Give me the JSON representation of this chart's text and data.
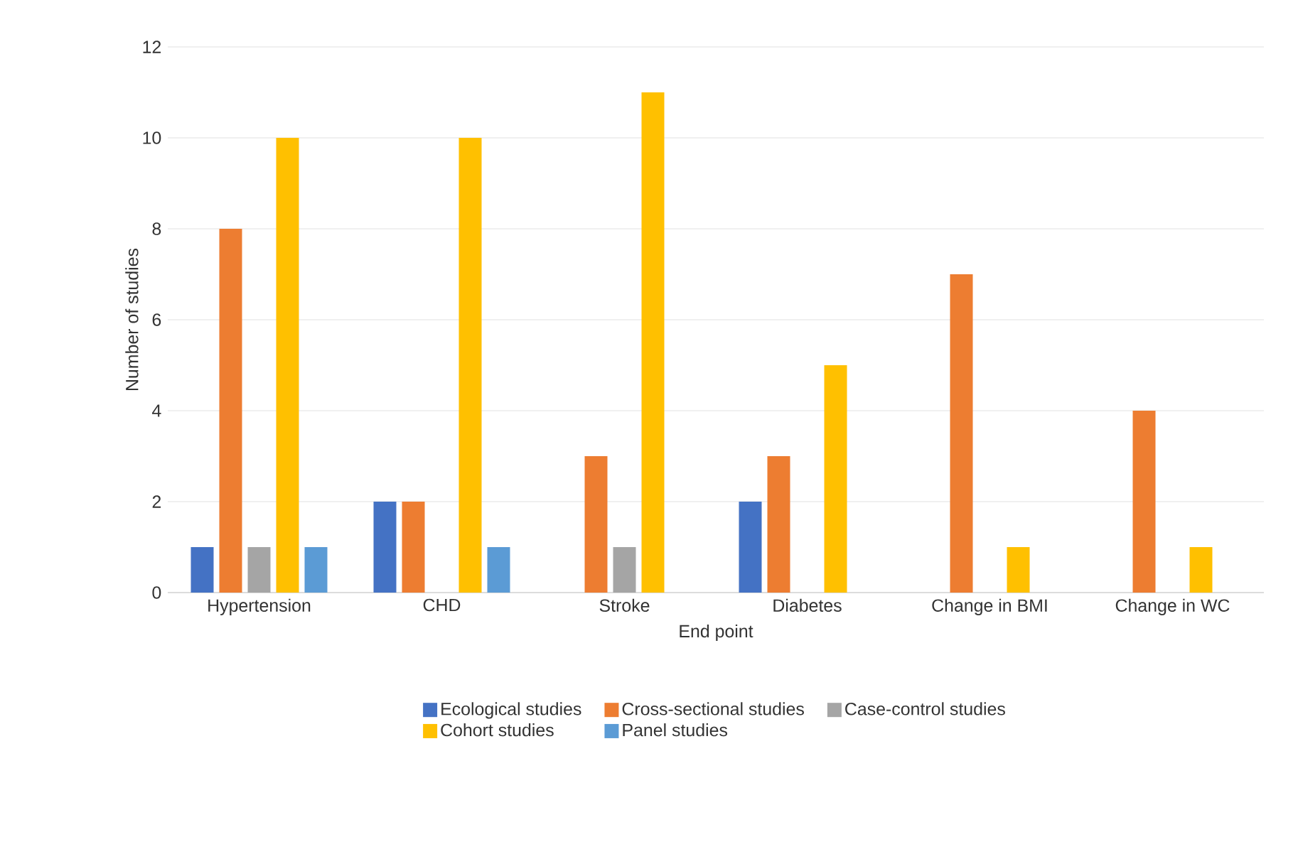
{
  "chart_data": {
    "type": "bar",
    "xlabel": "End point",
    "ylabel": "Number of studies",
    "categories": [
      "Hypertension",
      "CHD",
      "Stroke",
      "Diabetes",
      "Change in BMI",
      "Change in WC"
    ],
    "series": [
      {
        "name": "Ecological studies",
        "color": "#4472c4",
        "values": [
          1,
          2,
          null,
          2,
          null,
          null
        ]
      },
      {
        "name": "Cross-sectional studies",
        "color": "#ed7d31",
        "values": [
          8,
          2,
          3,
          3,
          7,
          4
        ]
      },
      {
        "name": "Case-control studies",
        "color": "#a5a5a5",
        "values": [
          1,
          null,
          1,
          null,
          null,
          null
        ]
      },
      {
        "name": "Cohort studies",
        "color": "#ffc000",
        "values": [
          10,
          10,
          11,
          5,
          1,
          1
        ]
      },
      {
        "name": "Panel studies",
        "color": "#5b9bd5",
        "values": [
          1,
          1,
          null,
          null,
          null,
          null
        ]
      }
    ],
    "ylim": [
      0,
      12
    ],
    "yticks": [
      0,
      2,
      4,
      6,
      8,
      10,
      12
    ],
    "grid": "y",
    "legend": "bottom"
  }
}
